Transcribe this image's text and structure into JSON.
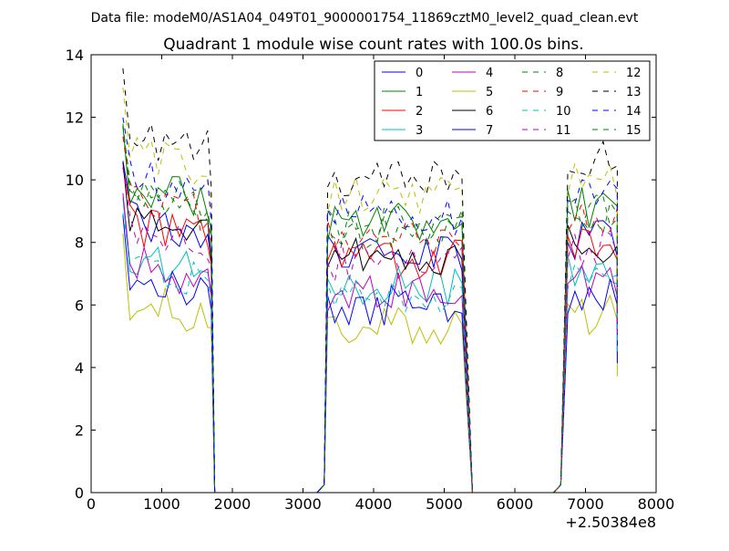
{
  "figure": {
    "suptitle": "Data file: modeM0/AS1A04_049T01_9000001754_11869cztM0_level2_quad_clean.evt"
  },
  "chart_data": {
    "type": "line",
    "title": "Quadrant 1 module wise count rates with 100.0s bins.",
    "xlabel": "",
    "ylabel": "",
    "x_offset_label": "+2.50384e8",
    "xlim": [
      0,
      8000
    ],
    "ylim": [
      0,
      14
    ],
    "xticks": [
      0,
      1000,
      2000,
      3000,
      4000,
      5000,
      6000,
      7000,
      8000
    ],
    "yticks": [
      0,
      2,
      4,
      6,
      8,
      10,
      12,
      14
    ],
    "grid": false,
    "legend_location": "top-right",
    "legend_columns": 4,
    "series": [
      {
        "name": "0",
        "color": "#0000ff",
        "dash": "solid",
        "base": 8.8
      },
      {
        "name": "1",
        "color": "#008000",
        "dash": "solid",
        "base": 9.9
      },
      {
        "name": "2",
        "color": "#ff0000",
        "dash": "solid",
        "base": 8.6
      },
      {
        "name": "3",
        "color": "#00bfbf",
        "dash": "solid",
        "base": 7.6
      },
      {
        "name": "4",
        "color": "#bf00bf",
        "dash": "solid",
        "base": 7.4
      },
      {
        "name": "5",
        "color": "#bfbf00",
        "dash": "solid",
        "base": 6.2
      },
      {
        "name": "6",
        "color": "#000000",
        "dash": "solid",
        "base": 8.7
      },
      {
        "name": "7",
        "color": "#0000ff",
        "dash": "solid",
        "base": 6.9
      },
      {
        "name": "8",
        "color": "#008000",
        "dash": "dashed",
        "base": 9.8
      },
      {
        "name": "9",
        "color": "#ff0000",
        "dash": "dashed",
        "base": 9.4
      },
      {
        "name": "10",
        "color": "#00bfbf",
        "dash": "dashed",
        "base": 7.3
      },
      {
        "name": "11",
        "color": "#bf00bf",
        "dash": "dashed",
        "base": 8.5
      },
      {
        "name": "12",
        "color": "#bfbf00",
        "dash": "dashed",
        "base": 10.9
      },
      {
        "name": "13",
        "color": "#000000",
        "dash": "dashed",
        "base": 11.5
      },
      {
        "name": "14",
        "color": "#0000ff",
        "dash": "dashed",
        "base": 10.2
      },
      {
        "name": "15",
        "color": "#008000",
        "dash": "dashed",
        "base": 9.6
      }
    ],
    "segments": [
      {
        "x_start": 450,
        "x_end": 1700,
        "step": 100,
        "scale": 1.0
      },
      {
        "x_start": 3350,
        "x_end": 5250,
        "step": 100,
        "scale": 0.87
      },
      {
        "x_start": 6750,
        "x_end": 7450,
        "step": 100,
        "scale": 0.92
      }
    ],
    "zero_ranges": [
      [
        1750,
        3200
      ],
      [
        5400,
        6550
      ]
    ]
  }
}
